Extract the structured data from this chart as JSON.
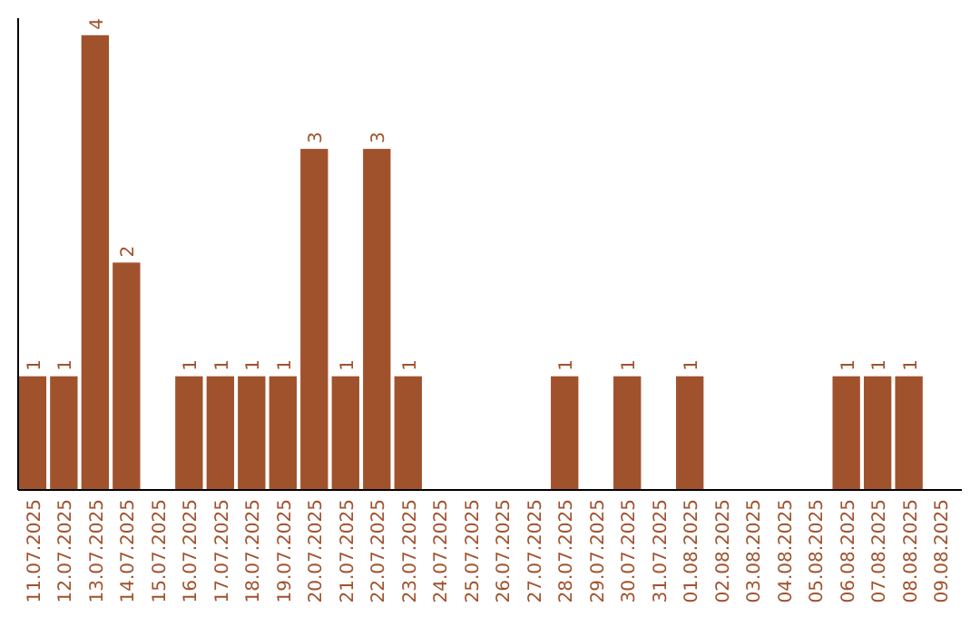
{
  "chart_data": {
    "type": "bar",
    "categories": [
      "11.07.2025",
      "12.07.2025",
      "13.07.2025",
      "14.07.2025",
      "15.07.2025",
      "16.07.2025",
      "17.07.2025",
      "18.07.2025",
      "19.07.2025",
      "20.07.2025",
      "21.07.2025",
      "22.07.2025",
      "23.07.2025",
      "24.07.2025",
      "25.07.2025",
      "26.07.2025",
      "27.07.2025",
      "28.07.2025",
      "29.07.2025",
      "30.07.2025",
      "31.07.2025",
      "01.08.2025",
      "02.08.2025",
      "03.08.2025",
      "04.08.2025",
      "05.08.2025",
      "06.08.2025",
      "07.08.2025",
      "08.08.2025",
      "09.08.2025"
    ],
    "values": [
      1,
      1,
      4,
      2,
      0,
      1,
      1,
      1,
      1,
      3,
      1,
      3,
      1,
      0,
      0,
      0,
      0,
      1,
      0,
      1,
      0,
      1,
      0,
      0,
      0,
      0,
      1,
      1,
      1,
      0
    ],
    "value_labels": [
      "1",
      "1",
      "4",
      "2",
      null,
      "1",
      "1",
      "1",
      "1",
      "3",
      "1",
      "3",
      "1",
      null,
      null,
      null,
      null,
      "1",
      null,
      "1",
      null,
      "1",
      null,
      null,
      null,
      null,
      "1",
      "1",
      "1",
      null
    ],
    "color": "#a0522d",
    "ylim": [
      0,
      4.15
    ],
    "tick_labels": "x"
  }
}
